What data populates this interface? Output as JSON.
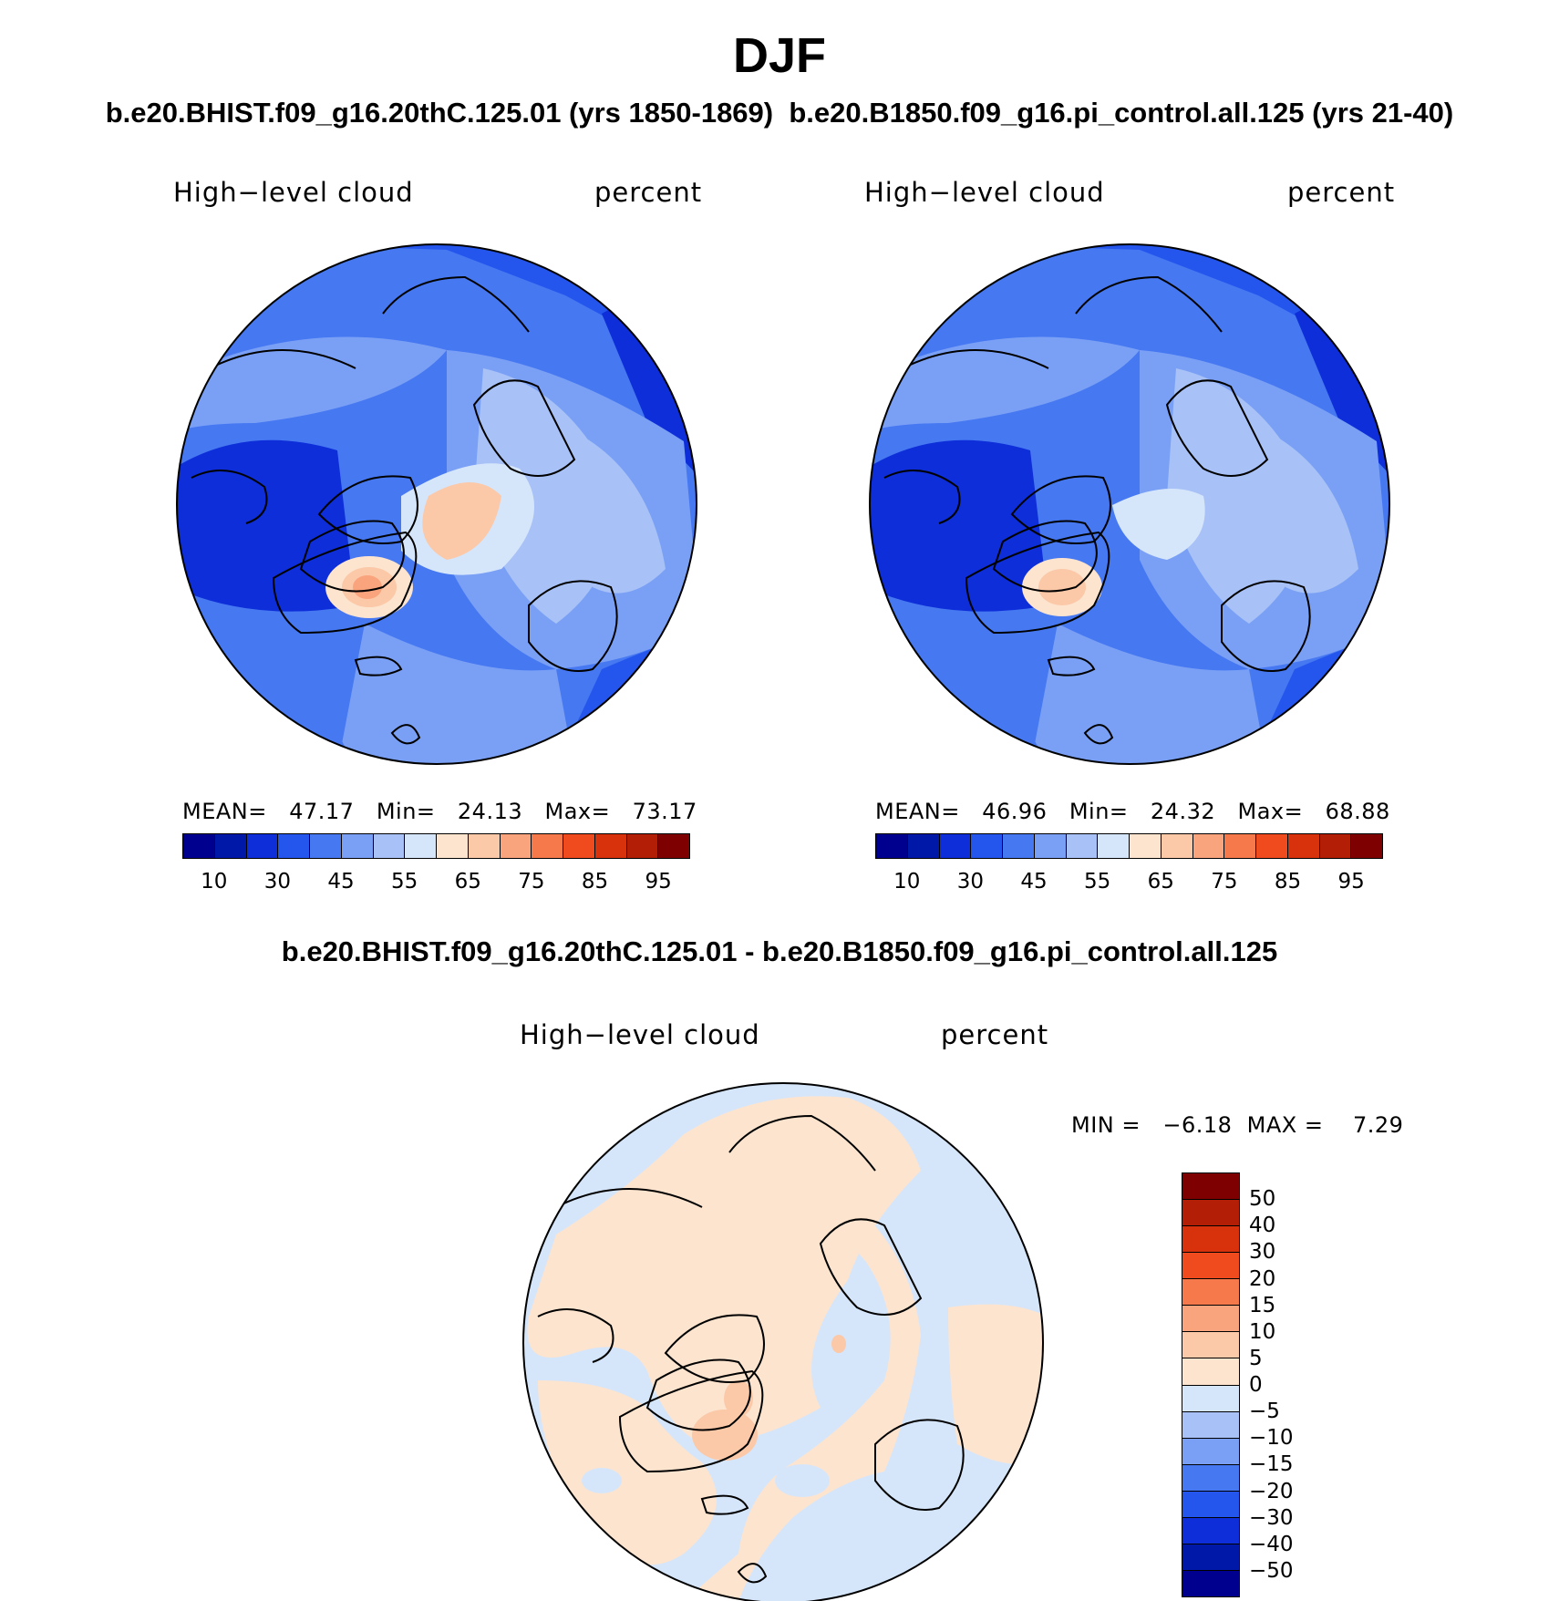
{
  "title": "DJF",
  "subtitle_left": "b.e20.BHIST.f09_g16.20thC.125.01 (yrs 1850-1869)",
  "subtitle_right": "b.e20.B1850.f09_g16.pi_control.all.125 (yrs 21-40)",
  "diff_title": "b.e20.BHIST.f09_g16.20thC.125.01 - b.e20.B1850.f09_g16.pi_control.all.125",
  "panels": [
    {
      "variable": "High−level cloud",
      "units": "percent",
      "stats": "MEAN=   47.17   Min=   24.13   Max=   73.17"
    },
    {
      "variable": "High−level cloud",
      "units": "percent",
      "stats": "MEAN=   46.96   Min=   24.32   Max=   68.88"
    }
  ],
  "diff_panel": {
    "variable": "High−level cloud",
    "units": "percent",
    "stats": "MIN =   −6.18  MAX =    7.29"
  },
  "colorbar_main": {
    "colors": [
      "#00008f",
      "#0018a8",
      "#0d2ed8",
      "#2456ee",
      "#4678f2",
      "#7aa0f6",
      "#a8c2f7",
      "#d6e6fa",
      "#fde4cf",
      "#fbc8a8",
      "#f9a47c",
      "#f5794a",
      "#ef4b1e",
      "#d8320c",
      "#b21e06",
      "#7f0000"
    ],
    "labels": [
      "10",
      "30",
      "45",
      "55",
      "65",
      "75",
      "85",
      "95"
    ]
  },
  "colorbar_diff": {
    "colors": [
      "#7f0000",
      "#b21e06",
      "#d8320c",
      "#ef4b1e",
      "#f5794a",
      "#f9a47c",
      "#fbc8a8",
      "#fde4cf",
      "#d6e6fa",
      "#a8c2f7",
      "#7aa0f6",
      "#4678f2",
      "#2456ee",
      "#0d2ed8",
      "#0018a8",
      "#00008f"
    ],
    "labels": [
      "50",
      "40",
      "30",
      "20",
      "15",
      "10",
      "5",
      "0",
      "−5",
      "−10",
      "−15",
      "−20",
      "−30",
      "−40",
      "−50"
    ]
  }
}
